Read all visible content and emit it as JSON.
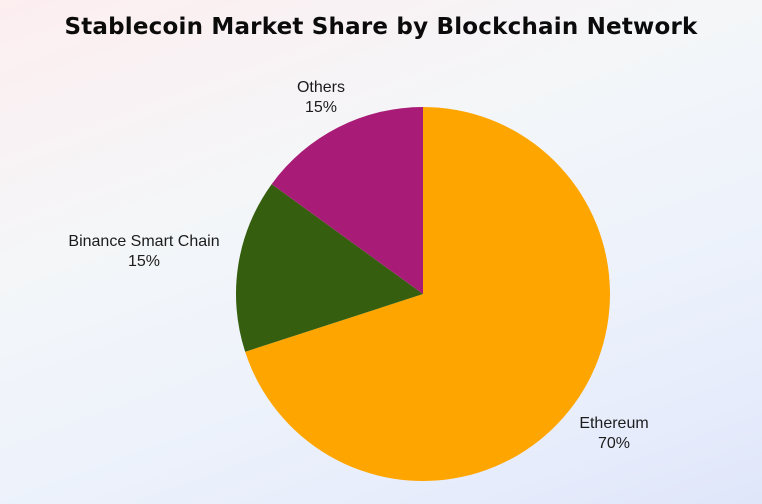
{
  "chart_data": {
    "type": "pie",
    "title": "Stablecoin Market Share by Blockchain Network",
    "slices": [
      {
        "label": "Ethereum",
        "value": 70,
        "value_label": "70%",
        "color": "#FFA500"
      },
      {
        "label": "Binance Smart Chain",
        "value": 15,
        "value_label": "15%",
        "color": "#355F0F"
      },
      {
        "label": "Others",
        "value": 15,
        "value_label": "15%",
        "color": "#A81C77"
      }
    ],
    "start_angle": "top",
    "direction": "clockwise"
  }
}
